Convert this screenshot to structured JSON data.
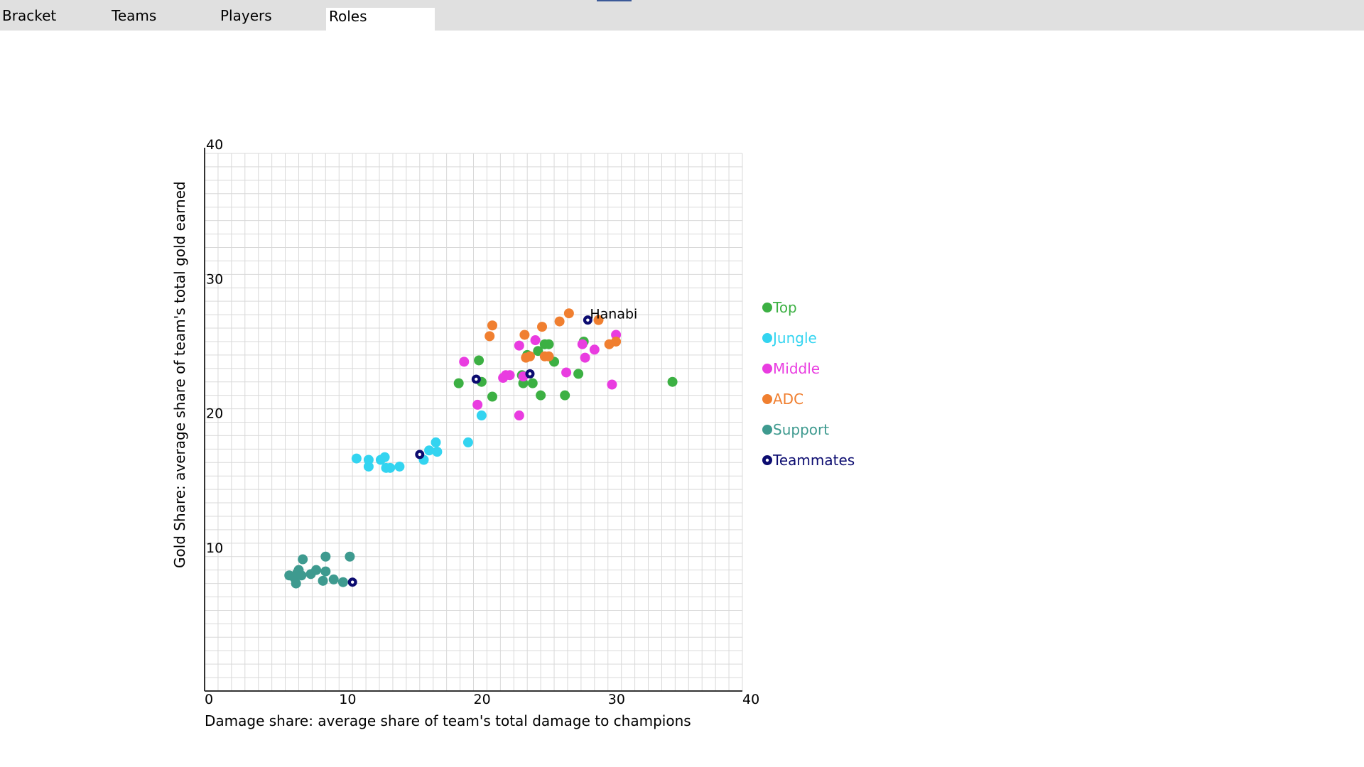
{
  "tabs": [
    {
      "label": "Bracket",
      "active": false
    },
    {
      "label": "Teams",
      "active": false
    },
    {
      "label": "Players",
      "active": false
    },
    {
      "label": "Roles",
      "active": true
    }
  ],
  "chart_data": {
    "type": "scatter",
    "xlabel": "Damage share: average share of team's total damage to champions",
    "ylabel": "Gold Share: average share of team's total gold earned",
    "xlim": [
      0,
      40
    ],
    "ylim": [
      0,
      40
    ],
    "xticks": [
      0,
      10,
      20,
      30,
      40
    ],
    "yticks": [
      10,
      20,
      30,
      40
    ],
    "grid": true,
    "legend_position": "right",
    "series": [
      {
        "name": "Top",
        "color": "#3cb043",
        "points": [
          [
            18.9,
            22.9
          ],
          [
            20.4,
            24.6
          ],
          [
            20.6,
            23.0
          ],
          [
            21.4,
            21.9
          ],
          [
            23.6,
            23.5
          ],
          [
            23.7,
            22.9
          ],
          [
            24.4,
            22.9
          ],
          [
            24.8,
            25.3
          ],
          [
            25.0,
            22.0
          ],
          [
            25.3,
            25.8
          ],
          [
            25.6,
            25.8
          ],
          [
            26.0,
            24.5
          ],
          [
            26.8,
            22.0
          ],
          [
            27.8,
            23.6
          ],
          [
            28.2,
            26.0
          ],
          [
            34.8,
            23.0
          ],
          [
            24.0,
            25.0
          ]
        ]
      },
      {
        "name": "Jungle",
        "color": "#33d4f0",
        "points": [
          [
            11.3,
            17.3
          ],
          [
            12.2,
            17.2
          ],
          [
            12.2,
            16.7
          ],
          [
            13.1,
            17.2
          ],
          [
            13.4,
            17.4
          ],
          [
            13.5,
            16.6
          ],
          [
            13.8,
            16.6
          ],
          [
            14.5,
            16.7
          ],
          [
            16.3,
            17.2
          ],
          [
            16.7,
            17.9
          ],
          [
            17.2,
            18.5
          ],
          [
            17.3,
            17.8
          ],
          [
            19.6,
            18.5
          ],
          [
            20.6,
            20.5
          ]
        ]
      },
      {
        "name": "Middle",
        "color": "#e93ce0",
        "points": [
          [
            19.3,
            24.5
          ],
          [
            20.3,
            21.3
          ],
          [
            22.2,
            23.3
          ],
          [
            22.4,
            23.5
          ],
          [
            22.7,
            23.5
          ],
          [
            23.4,
            20.5
          ],
          [
            23.4,
            25.7
          ],
          [
            23.7,
            23.4
          ],
          [
            24.6,
            26.1
          ],
          [
            26.9,
            23.7
          ],
          [
            28.1,
            25.8
          ],
          [
            28.3,
            24.8
          ],
          [
            29.0,
            25.4
          ],
          [
            30.3,
            22.8
          ],
          [
            30.6,
            26.5
          ]
        ]
      },
      {
        "name": "ADC",
        "color": "#f07f30",
        "points": [
          [
            21.2,
            26.4
          ],
          [
            21.4,
            27.2
          ],
          [
            23.8,
            26.5
          ],
          [
            23.9,
            24.8
          ],
          [
            24.2,
            24.9
          ],
          [
            25.1,
            27.1
          ],
          [
            25.3,
            24.9
          ],
          [
            25.6,
            24.9
          ],
          [
            26.4,
            27.5
          ],
          [
            27.1,
            28.1
          ],
          [
            29.3,
            27.6
          ],
          [
            30.1,
            25.8
          ],
          [
            30.6,
            26.0
          ]
        ]
      },
      {
        "name": "Support",
        "color": "#3e9a8f",
        "points": [
          [
            6.3,
            8.6
          ],
          [
            6.7,
            8.4
          ],
          [
            6.8,
            8.0
          ],
          [
            6.9,
            8.8
          ],
          [
            7.0,
            9.0
          ],
          [
            7.2,
            8.6
          ],
          [
            7.3,
            9.8
          ],
          [
            7.9,
            8.7
          ],
          [
            8.3,
            9.0
          ],
          [
            8.8,
            8.2
          ],
          [
            9.0,
            8.9
          ],
          [
            9.0,
            10.0
          ],
          [
            9.6,
            8.3
          ],
          [
            10.3,
            8.1
          ],
          [
            10.8,
            10.0
          ]
        ]
      },
      {
        "name": "Teammates",
        "color": "#0c0c70",
        "points": [
          [
            16.0,
            17.6
          ],
          [
            20.2,
            23.2
          ],
          [
            24.2,
            23.6
          ],
          [
            28.5,
            27.6
          ],
          [
            11.0,
            8.1
          ]
        ]
      }
    ],
    "annotations": [
      {
        "text": "Hanabi",
        "x": 28.5,
        "y": 27.6
      }
    ]
  }
}
